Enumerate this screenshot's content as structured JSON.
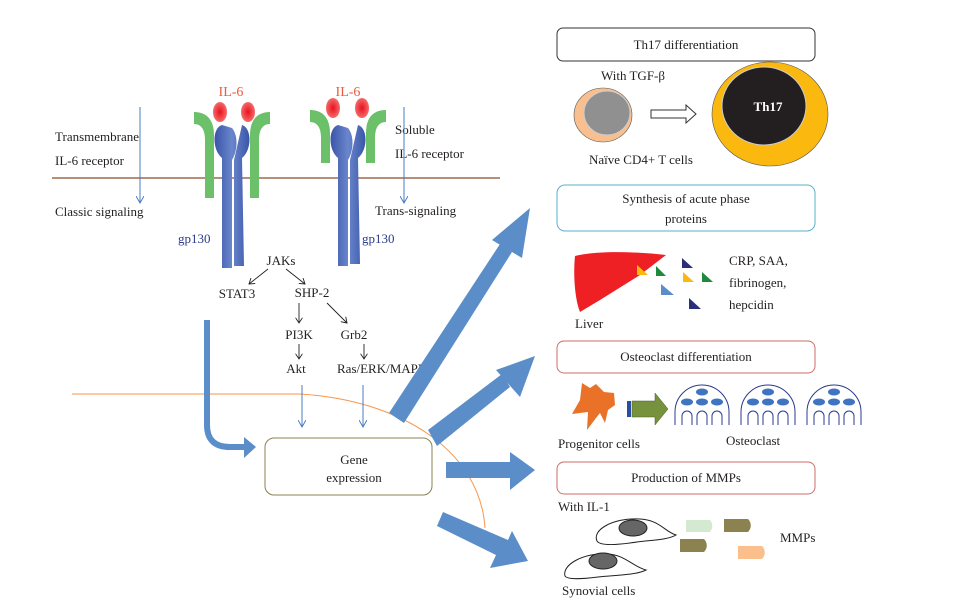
{
  "left": {
    "transmembrane": [
      "Transmembrane",
      "IL-6 receptor"
    ],
    "classic": "Classic signaling",
    "soluble": [
      "Soluble",
      "IL-6 receptor"
    ],
    "trans": "Trans-signaling",
    "il6_label": "IL-6",
    "gp130_label": "gp130",
    "pathway": {
      "jaks": "JAKs",
      "stat3": "STAT3",
      "shp2": "SHP-2",
      "pi3k": "PI3K",
      "grb2": "Grb2",
      "akt": "Akt",
      "ras": "Ras/ERK/MAPK"
    },
    "gene": [
      "Gene",
      "expression"
    ]
  },
  "right": {
    "th17": {
      "title": "Th17 differentiation",
      "with": "With TGF-β",
      "cell_label": "Th17",
      "naive": "Naïve CD4+ T cells"
    },
    "acute": {
      "title": [
        "Synthesis of acute phase",
        "proteins"
      ],
      "liver": "Liver",
      "proteins": [
        "CRP, SAA,",
        "fibrinogen,",
        "hepcidin"
      ]
    },
    "osteo": {
      "title": "Osteoclast differentiation",
      "progenitor": "Progenitor cells",
      "osteoclast": "Osteoclast"
    },
    "mmp": {
      "title": "Production of MMPs",
      "with": "With IL-1",
      "mmps": "MMPs",
      "synovial": "Synovial cells"
    }
  },
  "colors": {
    "arrow": "#5b8ec9",
    "membrane": "#8b4a2b",
    "nucleus_line": "#f7964b",
    "il6": "#ee3a3a",
    "receptor": "#6cc06a",
    "gp130": "#4a63b0"
  }
}
